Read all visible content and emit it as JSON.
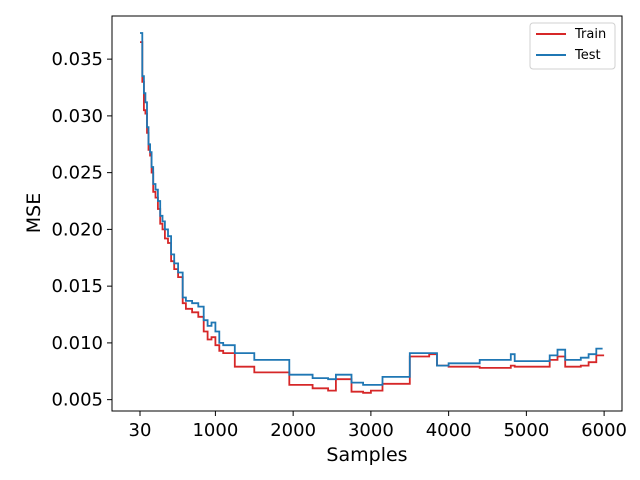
{
  "chart_data": {
    "type": "line",
    "title": "",
    "xlabel": "Samples",
    "ylabel": "MSE",
    "xlim": [
      -330,
      6230
    ],
    "ylim": [
      0.004,
      0.0388
    ],
    "xticks": [
      30,
      1000,
      2000,
      3000,
      4000,
      5000,
      6000
    ],
    "xtick_labels": [
      "30",
      "1000",
      "2000",
      "3000",
      "4000",
      "5000",
      "6000"
    ],
    "yticks": [
      0.005,
      0.01,
      0.015,
      0.02,
      0.025,
      0.03,
      0.035
    ],
    "ytick_labels": [
      "0.005",
      "0.010",
      "0.015",
      "0.020",
      "0.025",
      "0.030",
      "0.035"
    ],
    "grid": false,
    "legend_position": "top-right",
    "series": [
      {
        "name": "Train",
        "color": "#d62728",
        "step": true,
        "x": [
          30,
          60,
          80,
          100,
          120,
          140,
          160,
          180,
          200,
          230,
          260,
          290,
          320,
          350,
          390,
          430,
          470,
          520,
          580,
          620,
          700,
          780,
          850,
          900,
          950,
          1000,
          1050,
          1100,
          1250,
          1500,
          1950,
          2250,
          2450,
          2550,
          2750,
          2900,
          3000,
          3150,
          3500,
          3750,
          3850,
          4000,
          4400,
          4800,
          4850,
          5300,
          5400,
          5500,
          5700,
          5800,
          5900
        ],
        "y": [
          0.0365,
          0.033,
          0.0305,
          0.0302,
          0.0285,
          0.027,
          0.0265,
          0.025,
          0.0233,
          0.0228,
          0.0218,
          0.0205,
          0.02,
          0.0192,
          0.0188,
          0.0172,
          0.0165,
          0.0158,
          0.0135,
          0.013,
          0.0127,
          0.0123,
          0.011,
          0.0103,
          0.0105,
          0.0098,
          0.0093,
          0.0091,
          0.0079,
          0.0074,
          0.0063,
          0.006,
          0.0058,
          0.0068,
          0.0057,
          0.0056,
          0.0058,
          0.0064,
          0.0088,
          0.009,
          0.008,
          0.0079,
          0.0078,
          0.008,
          0.0079,
          0.0085,
          0.0088,
          0.0079,
          0.008,
          0.0083,
          0.0089
        ]
      },
      {
        "name": "Test",
        "color": "#1f77b4",
        "step": true,
        "x": [
          30,
          60,
          80,
          100,
          120,
          140,
          160,
          180,
          200,
          230,
          260,
          290,
          320,
          350,
          390,
          430,
          470,
          520,
          580,
          620,
          700,
          780,
          850,
          900,
          950,
          1000,
          1050,
          1100,
          1250,
          1500,
          1950,
          2250,
          2450,
          2550,
          2750,
          2900,
          3000,
          3150,
          3500,
          3750,
          3850,
          4000,
          4400,
          4800,
          4850,
          5300,
          5400,
          5500,
          5700,
          5800,
          5900
        ],
        "y": [
          0.0373,
          0.0335,
          0.032,
          0.0312,
          0.029,
          0.0275,
          0.0268,
          0.0255,
          0.024,
          0.0235,
          0.0225,
          0.0212,
          0.0207,
          0.02,
          0.0194,
          0.0178,
          0.017,
          0.0162,
          0.014,
          0.0137,
          0.0135,
          0.0132,
          0.012,
          0.0115,
          0.0118,
          0.011,
          0.01,
          0.0098,
          0.0091,
          0.0085,
          0.0072,
          0.0069,
          0.0068,
          0.0072,
          0.0065,
          0.0063,
          0.0063,
          0.007,
          0.0091,
          0.0091,
          0.008,
          0.0082,
          0.0085,
          0.009,
          0.0084,
          0.0089,
          0.0094,
          0.0085,
          0.0087,
          0.009,
          0.0095
        ]
      }
    ]
  }
}
